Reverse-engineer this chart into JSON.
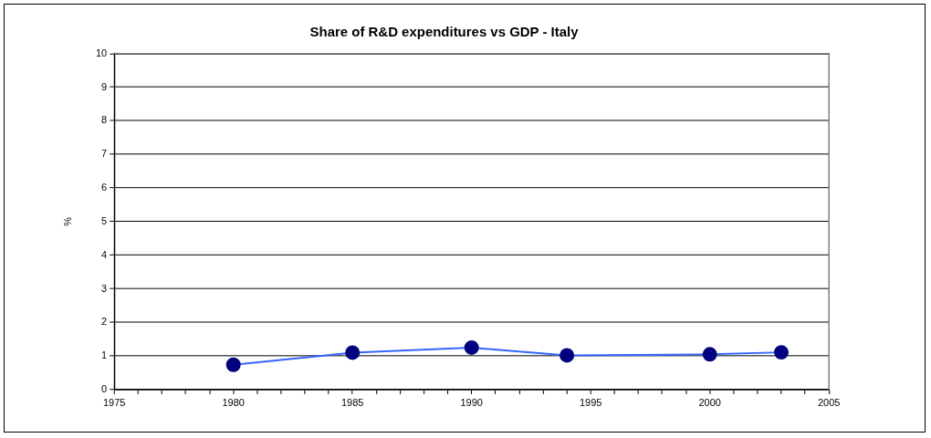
{
  "chart_data": {
    "type": "line",
    "title": "Share of R&D expenditures vs GDP - Italy",
    "ylabel": "%",
    "x": [
      1980,
      1985,
      1990,
      1994,
      2000,
      2003
    ],
    "series": [
      {
        "color": "#3366ff",
        "colors": [
          "#000080",
          "#000080",
          "#000080",
          "#000080",
          "#000080",
          "#000080"
        ],
        "values": [
          0.74,
          1.1,
          1.25,
          1.02,
          1.05,
          1.11
        ]
      }
    ],
    "marker": "circle",
    "line_style": "solid",
    "xlim": [
      1975,
      2005
    ],
    "xticks": [
      1975,
      {
        "value": 1976,
        "label": null
      },
      {
        "value": 1977,
        "label": null
      },
      {
        "value": 1978,
        "label": null
      },
      {
        "value": 1979,
        "label": null
      },
      1980,
      {
        "value": 1981,
        "label": null
      },
      {
        "value": 1982,
        "label": null
      },
      {
        "value": 1983,
        "label": null
      },
      {
        "value": 1984,
        "label": null
      },
      1985,
      {
        "value": 1986,
        "label": null
      },
      {
        "value": 1987,
        "label": null
      },
      {
        "value": 1988,
        "label": null
      },
      {
        "value": 1989,
        "label": null
      },
      1990,
      {
        "value": 1991,
        "label": null
      },
      {
        "value": 1992,
        "label": null
      },
      {
        "value": 1993,
        "label": null
      },
      {
        "value": 1994,
        "label": null
      },
      1995,
      {
        "value": 1996,
        "label": null
      },
      {
        "value": 1997,
        "label": null
      },
      {
        "value": 1998,
        "label": null
      },
      {
        "value": 1999,
        "label": null
      },
      2000,
      {
        "value": 2001,
        "label": null
      },
      {
        "value": 2002,
        "label": null
      },
      {
        "value": 2003,
        "label": null
      },
      {
        "value": 2004,
        "label": null
      },
      2005
    ],
    "ylim": [
      0,
      10
    ],
    "yticks": [
      0,
      1,
      2,
      3,
      4,
      5,
      6,
      7,
      8,
      9,
      10
    ],
    "grid": "y",
    "legend": false
  }
}
